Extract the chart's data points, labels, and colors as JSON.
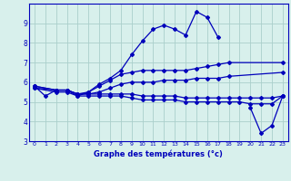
{
  "bg_color": "#d8f0ec",
  "line_color": "#0000bb",
  "grid_color": "#aacfcb",
  "xlabel": "Graphe des températures (°c)",
  "ylim": [
    3,
    10
  ],
  "xlim": [
    -0.5,
    23.5
  ],
  "yticks": [
    3,
    4,
    5,
    6,
    7,
    8,
    9
  ],
  "xticks": [
    0,
    1,
    2,
    3,
    4,
    5,
    6,
    7,
    8,
    9,
    10,
    11,
    12,
    13,
    14,
    15,
    16,
    17,
    18,
    19,
    20,
    21,
    22,
    23
  ],
  "series": [
    {
      "x": [
        0,
        1,
        2,
        3,
        4,
        5,
        6,
        7,
        8,
        9,
        10,
        11,
        12,
        13,
        14,
        15,
        16,
        17,
        18,
        19,
        20,
        21,
        22,
        23
      ],
      "y": [
        5.8,
        5.3,
        5.6,
        5.6,
        5.3,
        5.5,
        5.9,
        6.2,
        6.6,
        7.4,
        8.1,
        8.7,
        8.9,
        8.7,
        8.4,
        9.6,
        9.3,
        8.3,
        null,
        null,
        4.7,
        3.4,
        3.8,
        5.3
      ]
    },
    {
      "x": [
        0,
        2,
        3,
        4,
        5,
        6,
        7,
        8,
        9,
        10,
        11,
        12,
        13,
        14,
        15,
        16,
        17,
        18,
        23
      ],
      "y": [
        5.8,
        5.6,
        5.6,
        5.4,
        5.5,
        5.8,
        6.1,
        6.4,
        6.5,
        6.6,
        6.6,
        6.6,
        6.6,
        6.6,
        6.7,
        6.8,
        6.9,
        7.0,
        7.0
      ]
    },
    {
      "x": [
        0,
        2,
        3,
        4,
        5,
        6,
        7,
        8,
        9,
        10,
        11,
        12,
        13,
        14,
        15,
        16,
        17,
        18,
        23
      ],
      "y": [
        5.8,
        5.6,
        5.6,
        5.4,
        5.4,
        5.5,
        5.7,
        5.9,
        6.0,
        6.0,
        6.0,
        6.1,
        6.1,
        6.1,
        6.2,
        6.2,
        6.2,
        6.3,
        6.5
      ]
    },
    {
      "x": [
        0,
        2,
        3,
        4,
        5,
        6,
        7,
        8,
        9,
        10,
        11,
        12,
        13,
        14,
        15,
        16,
        17,
        18,
        19,
        20,
        21,
        22,
        23
      ],
      "y": [
        5.7,
        5.6,
        5.6,
        5.4,
        5.4,
        5.4,
        5.4,
        5.4,
        5.4,
        5.3,
        5.3,
        5.3,
        5.3,
        5.2,
        5.2,
        5.2,
        5.2,
        5.2,
        5.2,
        5.2,
        5.2,
        5.2,
        5.3
      ]
    },
    {
      "x": [
        0,
        2,
        3,
        4,
        5,
        6,
        7,
        8,
        9,
        10,
        11,
        12,
        13,
        14,
        15,
        16,
        17,
        18,
        19,
        20,
        21,
        22,
        23
      ],
      "y": [
        5.7,
        5.5,
        5.5,
        5.3,
        5.3,
        5.3,
        5.3,
        5.3,
        5.2,
        5.1,
        5.1,
        5.1,
        5.1,
        5.0,
        5.0,
        5.0,
        5.0,
        5.0,
        5.0,
        4.9,
        4.9,
        4.9,
        5.3
      ]
    }
  ]
}
